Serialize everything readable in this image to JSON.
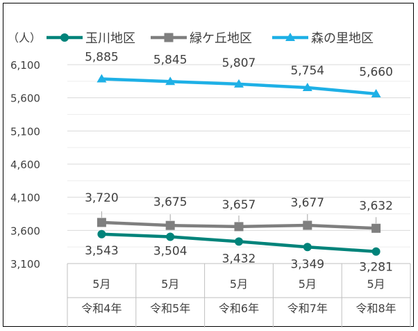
{
  "chart_data": {
    "type": "line",
    "unit_label": "（人）",
    "categories": [
      {
        "month": "5月",
        "year": "令和4年"
      },
      {
        "month": "5月",
        "year": "令和5年"
      },
      {
        "month": "5月",
        "year": "令和6年"
      },
      {
        "month": "5月",
        "year": "令和7年"
      },
      {
        "month": "5月",
        "year": "令和8年"
      }
    ],
    "series": [
      {
        "name": "玉川地区",
        "color": "#00837a",
        "marker": "circle",
        "values": [
          3543,
          3504,
          3432,
          3349,
          3281
        ],
        "labels": [
          "3,543",
          "3,504",
          "3,432",
          "3,349",
          "3,281"
        ]
      },
      {
        "name": "緑ケ丘地区",
        "color": "#7f7f7f",
        "marker": "square",
        "values": [
          3720,
          3675,
          3657,
          3677,
          3632
        ],
        "labels": [
          "3,720",
          "3,675",
          "3,657",
          "3,677",
          "3,632"
        ]
      },
      {
        "name": "森の里地区",
        "color": "#1eb0e6",
        "marker": "triangle",
        "values": [
          5885,
          5845,
          5807,
          5754,
          5660
        ],
        "labels": [
          "5,885",
          "5,845",
          "5,807",
          "5,754",
          "5,660"
        ]
      }
    ],
    "ylim": [
      3100,
      6300
    ],
    "yticks": [
      3100,
      3600,
      4100,
      4600,
      5100,
      5600,
      6100
    ],
    "ytick_labels": [
      "3,100",
      "3,600",
      "4,100",
      "4,600",
      "5,100",
      "5,600",
      "6,100"
    ],
    "grid": true,
    "legend_position": "top"
  }
}
